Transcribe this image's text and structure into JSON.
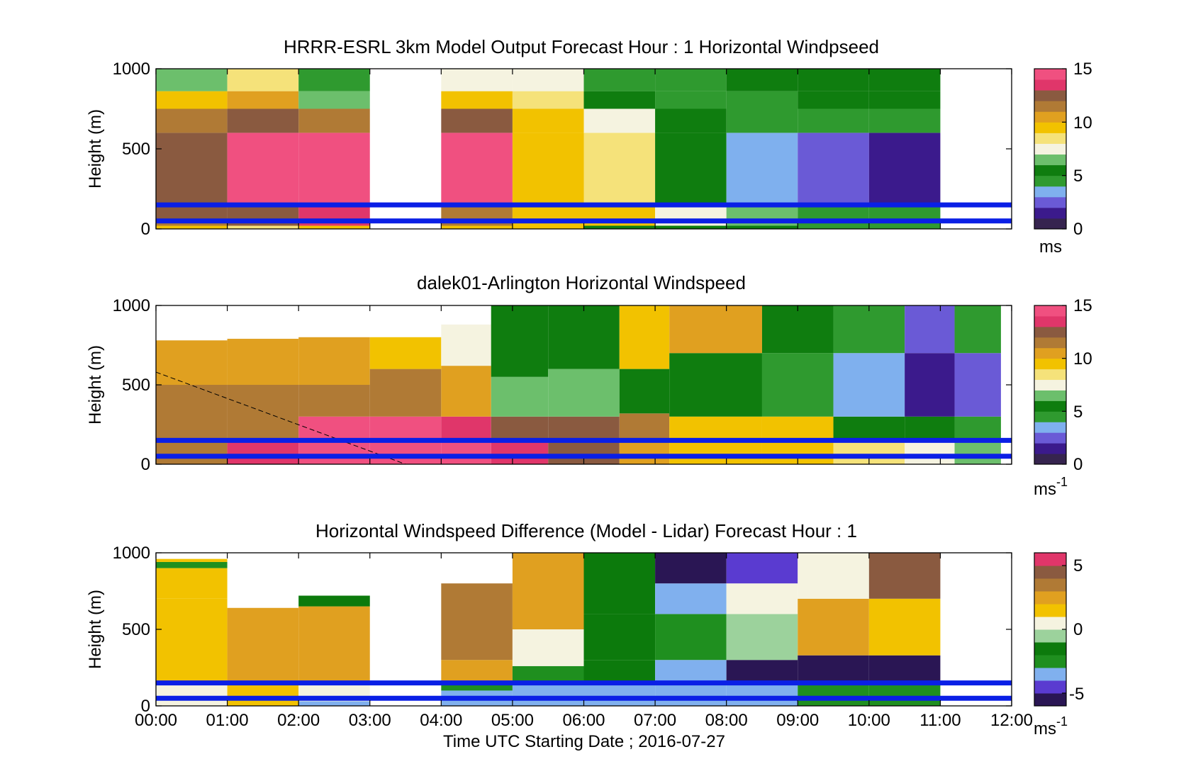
{
  "figure": {
    "xlabel": "Time UTC  Starting Date ; 2016-07-27",
    "xticks": [
      "00:00",
      "01:00",
      "02:00",
      "03:00",
      "04:00",
      "05:00",
      "06:00",
      "07:00",
      "08:00",
      "09:00",
      "10:00",
      "11:00",
      "12:00"
    ]
  },
  "colors": {
    "wind_colormap": [
      "#36244f",
      "#3b1a8c",
      "#6a5ad6",
      "#7fb0ee",
      "#2f9a2f",
      "#0f7d0f",
      "#6cbf6c",
      "#f5f3e0",
      "#f5e27a",
      "#f2c200",
      "#e0a020",
      "#b07a35",
      "#8a5a40",
      "#e0366a",
      "#f05080"
    ],
    "diff_colormap": [
      "#2a1654",
      "#5a3bd0",
      "#80b0ee",
      "#1f8f1f",
      "#0c7a0c",
      "#9cd29c",
      "#f5f3e0",
      "#f2c200",
      "#e0a020",
      "#b07a35",
      "#8a5a40",
      "#e0366a"
    ],
    "threshold_lines": "#0a1fe6",
    "nodata": "#ffffff"
  },
  "chart_data": [
    {
      "type": "heatmap",
      "title": "HRRR-ESRL 3km Model Output   Forecast Hour : 1 Horizontal Windpseed",
      "ylabel": "Height (m)",
      "yticks": [
        "0",
        "500",
        "1000"
      ],
      "ylim": [
        0,
        1000
      ],
      "xlim_hours": [
        0,
        12
      ],
      "colorbar": {
        "ticks": [
          "0",
          "5",
          "10",
          "15"
        ],
        "range": [
          0,
          15
        ],
        "unit": "ms"
      },
      "horizontal_lines_m": [
        150,
        50
      ],
      "columns": [
        {
          "t0": 0,
          "t1": 1,
          "bands": [
            [
              0,
              20,
              9
            ],
            [
              20,
              40,
              11.5
            ],
            [
              40,
              150,
              12
            ],
            [
              150,
              600,
              12
            ],
            [
              600,
              750,
              11
            ],
            [
              750,
              860,
              9.5
            ],
            [
              860,
              1000,
              6.5
            ]
          ]
        },
        {
          "t0": 1,
          "t1": 2,
          "bands": [
            [
              0,
              20,
              8
            ],
            [
              20,
              150,
              12
            ],
            [
              150,
              600,
              14.5
            ],
            [
              600,
              750,
              12.5
            ],
            [
              750,
              860,
              10
            ],
            [
              860,
              1000,
              8
            ]
          ]
        },
        {
          "t0": 2,
          "t1": 3,
          "bands": [
            [
              0,
              20,
              9
            ],
            [
              20,
              150,
              13.5
            ],
            [
              150,
              600,
              14.2
            ],
            [
              600,
              750,
              11
            ],
            [
              750,
              860,
              6.5
            ],
            [
              860,
              1000,
              4.7
            ]
          ]
        },
        {
          "t0": 4,
          "t1": 5,
          "bands": [
            [
              0,
              20,
              9
            ],
            [
              20,
              150,
              11.5
            ],
            [
              150,
              600,
              14.5
            ],
            [
              600,
              750,
              12.5
            ],
            [
              750,
              860,
              9.5
            ],
            [
              860,
              1000,
              7.5
            ]
          ]
        },
        {
          "t0": 5,
          "t1": 6,
          "bands": [
            [
              0,
              20,
              9
            ],
            [
              20,
              150,
              9.5
            ],
            [
              150,
              600,
              9
            ],
            [
              600,
              750,
              9
            ],
            [
              750,
              860,
              8.5
            ],
            [
              860,
              1000,
              7.8
            ]
          ]
        },
        {
          "t0": 6,
          "t1": 7,
          "bands": [
            [
              0,
              20,
              5.5
            ],
            [
              20,
              150,
              9.5
            ],
            [
              150,
              600,
              8.5
            ],
            [
              600,
              750,
              7.2
            ],
            [
              750,
              860,
              5.8
            ],
            [
              860,
              1000,
              4.7
            ]
          ]
        },
        {
          "t0": 7,
          "t1": 8,
          "bands": [
            [
              0,
              20,
              5
            ],
            [
              20,
              150,
              7
            ],
            [
              150,
              600,
              5.8
            ],
            [
              600,
              750,
              5.2
            ],
            [
              750,
              860,
              4.7
            ],
            [
              860,
              1000,
              4.2
            ]
          ]
        },
        {
          "t0": 8,
          "t1": 9,
          "bands": [
            [
              0,
              20,
              5
            ],
            [
              20,
              150,
              6
            ],
            [
              150,
              600,
              3
            ],
            [
              600,
              750,
              4.6
            ],
            [
              750,
              860,
              4.8
            ],
            [
              860,
              1000,
              5
            ]
          ]
        },
        {
          "t0": 9,
          "t1": 10,
          "bands": [
            [
              0,
              20,
              4.8
            ],
            [
              20,
              150,
              4.6
            ],
            [
              150,
              600,
              2.4
            ],
            [
              600,
              750,
              4.6
            ],
            [
              750,
              860,
              5
            ],
            [
              860,
              1000,
              5.5
            ]
          ]
        },
        {
          "t0": 10,
          "t1": 11,
          "bands": [
            [
              0,
              20,
              4.7
            ],
            [
              20,
              150,
              4.8
            ],
            [
              150,
              600,
              1.6
            ],
            [
              600,
              750,
              4.6
            ],
            [
              750,
              860,
              5
            ],
            [
              860,
              1000,
              5.5
            ]
          ]
        }
      ]
    },
    {
      "type": "heatmap",
      "title": "dalek01-Arlington  Horizontal Windspeed",
      "ylabel": "Height (m)",
      "yticks": [
        "0",
        "500",
        "1000"
      ],
      "ylim": [
        0,
        1000
      ],
      "xlim_hours": [
        0,
        12
      ],
      "colorbar": {
        "ticks": [
          "0",
          "5",
          "10",
          "15"
        ],
        "range": [
          0,
          15
        ],
        "unit": "ms",
        "unit_exp": "-1"
      },
      "horizontal_lines_m": [
        150,
        50
      ],
      "dashed_line": {
        "from": [
          0,
          580
        ],
        "to": [
          3.5,
          0
        ]
      },
      "columns": [
        {
          "t0": 0.0,
          "t1": 1.0,
          "top_m": 780,
          "bands": [
            [
              0,
              150,
              11
            ],
            [
              150,
              500,
              11.5
            ],
            [
              500,
              780,
              10
            ]
          ]
        },
        {
          "t0": 1.0,
          "t1": 2.0,
          "top_m": 790,
          "bands": [
            [
              0,
              150,
              13
            ],
            [
              150,
              500,
              11.5
            ],
            [
              500,
              790,
              10.5
            ]
          ]
        },
        {
          "t0": 2.0,
          "t1": 3.0,
          "top_m": 800,
          "bands": [
            [
              0,
              150,
              14
            ],
            [
              150,
              300,
              14.5
            ],
            [
              300,
              500,
              11.5
            ],
            [
              500,
              800,
              10
            ]
          ]
        },
        {
          "t0": 3.0,
          "t1": 4.0,
          "top_m": 800,
          "bands": [
            [
              0,
              150,
              14.5
            ],
            [
              150,
              300,
              14
            ],
            [
              300,
              600,
              11
            ],
            [
              600,
              800,
              9.5
            ]
          ]
        },
        {
          "t0": 4.0,
          "t1": 4.7,
          "top_m": 880,
          "bands": [
            [
              0,
              150,
              14.5
            ],
            [
              150,
              300,
              13.5
            ],
            [
              300,
              620,
              10.5
            ],
            [
              620,
              880,
              7
            ]
          ]
        },
        {
          "t0": 4.7,
          "t1": 5.5,
          "top_m": 1000,
          "bands": [
            [
              0,
              150,
              13
            ],
            [
              150,
              300,
              12
            ],
            [
              300,
              550,
              6.5
            ],
            [
              550,
              1000,
              5
            ]
          ]
        },
        {
          "t0": 5.5,
          "t1": 6.5,
          "top_m": 1000,
          "bands": [
            [
              0,
              150,
              12
            ],
            [
              150,
              300,
              12
            ],
            [
              300,
              600,
              6
            ],
            [
              600,
              1000,
              5.5
            ]
          ]
        },
        {
          "t0": 6.5,
          "t1": 7.2,
          "top_m": 1000,
          "bands": [
            [
              0,
              150,
              10
            ],
            [
              150,
              320,
              11.5
            ],
            [
              320,
              600,
              5
            ],
            [
              600,
              1000,
              9
            ]
          ]
        },
        {
          "t0": 7.2,
          "t1": 8.5,
          "top_m": 1000,
          "bands": [
            [
              0,
              150,
              9.5
            ],
            [
              150,
              300,
              9
            ],
            [
              300,
              700,
              5
            ],
            [
              700,
              1000,
              10
            ]
          ]
        },
        {
          "t0": 8.5,
          "t1": 9.5,
          "top_m": 1000,
          "bands": [
            [
              0,
              150,
              9.5
            ],
            [
              150,
              300,
              9
            ],
            [
              300,
              700,
              4.5
            ],
            [
              700,
              1000,
              5
            ]
          ]
        },
        {
          "t0": 9.5,
          "t1": 10.5,
          "top_m": 1000,
          "bands": [
            [
              0,
              150,
              8.5
            ],
            [
              150,
              300,
              5
            ],
            [
              300,
              700,
              3
            ],
            [
              700,
              1000,
              4.5
            ]
          ]
        },
        {
          "t0": 10.5,
          "t1": 11.2,
          "top_m": 1000,
          "bands": [
            [
              0,
              150,
              7.5
            ],
            [
              150,
              300,
              5
            ],
            [
              300,
              700,
              1.8
            ],
            [
              700,
              1000,
              2
            ]
          ]
        },
        {
          "t0": 11.2,
          "t1": 11.85,
          "top_m": 1000,
          "bands": [
            [
              0,
              150,
              6.5
            ],
            [
              150,
              300,
              4.5
            ],
            [
              300,
              700,
              2.8
            ],
            [
              700,
              1000,
              4.5
            ]
          ]
        }
      ]
    },
    {
      "type": "heatmap",
      "title": "Horizontal Windspeed Difference (Model - Lidar) Forecast Hour : 1",
      "ylabel": "Height (m)",
      "yticks": [
        "0",
        "500",
        "1000"
      ],
      "ylim": [
        0,
        1000
      ],
      "xlim_hours": [
        0,
        12
      ],
      "colorbar": {
        "ticks": [
          "-5",
          "0",
          "5"
        ],
        "range": [
          -6,
          6
        ],
        "unit": "ms",
        "unit_exp": "-1"
      },
      "horizontal_lines_m": [
        150,
        50
      ],
      "columns": [
        {
          "t0": 0,
          "t1": 1,
          "bands": [
            [
              0,
              150,
              0.5
            ],
            [
              150,
              700,
              1.5
            ],
            [
              700,
              900,
              1.2
            ],
            [
              900,
              940,
              -3
            ],
            [
              940,
              960,
              1
            ]
          ]
        },
        {
          "t0": 1,
          "t1": 2,
          "bands": [
            [
              0,
              150,
              1.5
            ],
            [
              150,
              640,
              2.2
            ]
          ]
        },
        {
          "t0": 2,
          "t1": 3,
          "bands": [
            [
              0,
              30,
              -3.5
            ],
            [
              30,
              150,
              0.3
            ],
            [
              150,
              650,
              2.5
            ],
            [
              650,
              720,
              -1.5
            ]
          ]
        },
        {
          "t0": 4,
          "t1": 5,
          "bands": [
            [
              0,
              100,
              -3.5
            ],
            [
              100,
              150,
              -2.5
            ],
            [
              150,
              300,
              2.5
            ],
            [
              300,
              800,
              3.8
            ]
          ]
        },
        {
          "t0": 5,
          "t1": 6,
          "bands": [
            [
              0,
              150,
              -4
            ],
            [
              150,
              260,
              -3
            ],
            [
              260,
              500,
              0.5
            ],
            [
              500,
              1000,
              2
            ]
          ]
        },
        {
          "t0": 6,
          "t1": 7,
          "bands": [
            [
              0,
              150,
              -3.5
            ],
            [
              150,
              300,
              -2
            ],
            [
              300,
              600,
              -1.5
            ],
            [
              600,
              1000,
              -1.5
            ]
          ]
        },
        {
          "t0": 7,
          "t1": 8,
          "bands": [
            [
              0,
              150,
              -3.5
            ],
            [
              150,
              300,
              -4
            ],
            [
              300,
              600,
              -2.5
            ],
            [
              600,
              800,
              -4
            ],
            [
              800,
              1000,
              -6
            ]
          ]
        },
        {
          "t0": 8,
          "t1": 9,
          "bands": [
            [
              0,
              150,
              -4
            ],
            [
              150,
              300,
              -5.5
            ],
            [
              300,
              600,
              -0.8
            ],
            [
              600,
              800,
              0
            ],
            [
              800,
              1000,
              -4.5
            ]
          ]
        },
        {
          "t0": 9,
          "t1": 10,
          "bands": [
            [
              0,
              150,
              -2.5
            ],
            [
              150,
              330,
              -6
            ],
            [
              330,
              700,
              2
            ],
            [
              700,
              1000,
              0.5
            ]
          ]
        },
        {
          "t0": 10,
          "t1": 11,
          "bands": [
            [
              0,
              150,
              -3
            ],
            [
              150,
              330,
              -6
            ],
            [
              330,
              700,
              1
            ],
            [
              700,
              1000,
              4
            ]
          ]
        }
      ]
    }
  ]
}
